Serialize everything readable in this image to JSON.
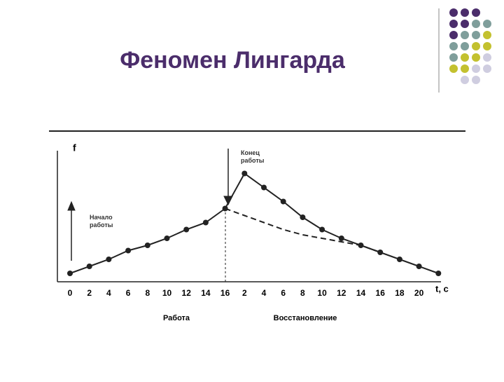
{
  "chart_data": {
    "type": "line",
    "title": "Феномен Лингарда",
    "ylabel": "f",
    "xlabel": "t, c",
    "categories": [
      "0",
      "2",
      "4",
      "6",
      "8",
      "10",
      "12",
      "14",
      "16",
      "2",
      "4",
      "6",
      "8",
      "10",
      "12",
      "14",
      "16",
      "18",
      "20",
      null
    ],
    "series": [
      {
        "color": "#222222",
        "style": "solid",
        "values": [
          0.4,
          0.8,
          1.2,
          1.7,
          2.0,
          2.4,
          2.9,
          3.3,
          4.1,
          6.1,
          5.3,
          4.5,
          3.6,
          2.9,
          2.4,
          2.0,
          1.6,
          1.2,
          0.8,
          0.4
        ]
      },
      {
        "color": "#222222",
        "style": "dashed",
        "values": [
          null,
          null,
          null,
          null,
          null,
          null,
          null,
          null,
          4.1,
          3.7,
          3.3,
          2.9,
          2.6,
          2.4,
          2.2,
          2.0,
          1.6,
          null,
          null,
          null
        ]
      }
    ],
    "ylim": [
      0,
      8
    ],
    "annotations": {
      "start": "Начало работы",
      "end": "Конец работы",
      "work": "Работа",
      "recovery": "Восстановление"
    }
  }
}
